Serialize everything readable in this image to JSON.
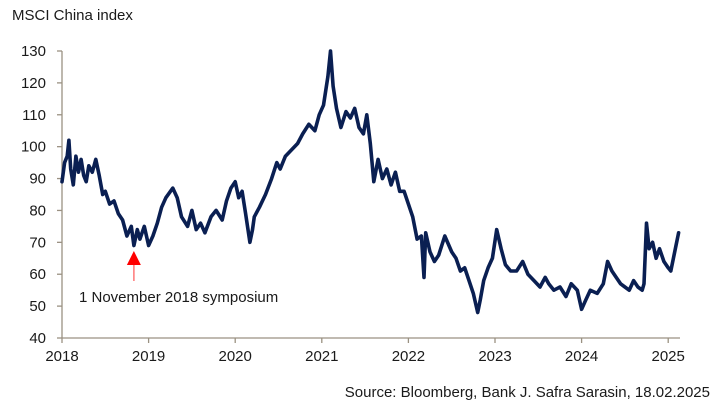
{
  "chart_data": {
    "type": "line",
    "title": "MSCI China index",
    "xlabel": "",
    "ylabel": "",
    "source": "Source:  Bloomberg, Bank J. Safra Sarasin, 18.02.2025",
    "xlim": [
      2018,
      2025.2
    ],
    "ylim": [
      40,
      130
    ],
    "x_ticks": [
      "2018",
      "2019",
      "2020",
      "2021",
      "2022",
      "2023",
      "2024",
      "2025"
    ],
    "y_ticks": [
      "40",
      "50",
      "60",
      "70",
      "80",
      "90",
      "100",
      "110",
      "120",
      "130"
    ],
    "grid": false,
    "legend": "none",
    "annotation": {
      "text": "1 November 2018 symposium",
      "x": 2018.83,
      "arrow_color": "#ff0000"
    },
    "series": [
      {
        "name": "MSCI China index",
        "color": "#0a1f52",
        "x": [
          2018.0,
          2018.03,
          2018.06,
          2018.08,
          2018.1,
          2018.13,
          2018.16,
          2018.19,
          2018.22,
          2018.25,
          2018.28,
          2018.31,
          2018.35,
          2018.39,
          2018.43,
          2018.47,
          2018.5,
          2018.55,
          2018.6,
          2018.65,
          2018.7,
          2018.75,
          2018.8,
          2018.83,
          2018.87,
          2018.9,
          2018.95,
          2019.0,
          2019.05,
          2019.1,
          2019.15,
          2019.2,
          2019.28,
          2019.33,
          2019.38,
          2019.45,
          2019.5,
          2019.55,
          2019.6,
          2019.65,
          2019.72,
          2019.78,
          2019.85,
          2019.9,
          2019.95,
          2020.0,
          2020.04,
          2020.08,
          2020.12,
          2020.17,
          2020.2,
          2020.22,
          2020.28,
          2020.35,
          2020.42,
          2020.48,
          2020.52,
          2020.58,
          2020.65,
          2020.72,
          2020.78,
          2020.85,
          2020.92,
          2020.97,
          2021.02,
          2021.07,
          2021.1,
          2021.13,
          2021.17,
          2021.22,
          2021.28,
          2021.33,
          2021.38,
          2021.43,
          2021.48,
          2021.52,
          2021.56,
          2021.6,
          2021.65,
          2021.7,
          2021.75,
          2021.8,
          2021.85,
          2021.9,
          2021.95,
          2022.0,
          2022.05,
          2022.1,
          2022.15,
          2022.18,
          2022.2,
          2022.25,
          2022.3,
          2022.35,
          2022.42,
          2022.5,
          2022.55,
          2022.6,
          2022.65,
          2022.7,
          2022.75,
          2022.8,
          2022.83,
          2022.87,
          2022.92,
          2022.97,
          2023.02,
          2023.07,
          2023.12,
          2023.18,
          2023.25,
          2023.32,
          2023.38,
          2023.45,
          2023.52,
          2023.58,
          2023.62,
          2023.68,
          2023.75,
          2023.82,
          2023.88,
          2023.95,
          2024.0,
          2024.05,
          2024.1,
          2024.18,
          2024.25,
          2024.3,
          2024.35,
          2024.4,
          2024.45,
          2024.5,
          2024.55,
          2024.6,
          2024.65,
          2024.7,
          2024.72,
          2024.75,
          2024.78,
          2024.82,
          2024.86,
          2024.9,
          2024.95,
          2025.0,
          2025.03,
          2025.06,
          2025.09,
          2025.12
        ],
        "values": [
          89,
          95,
          97,
          102,
          93,
          88,
          97,
          92,
          96,
          91,
          89,
          94,
          92,
          96,
          91,
          85,
          86,
          82,
          83,
          79,
          77,
          72,
          75,
          69,
          74,
          71,
          75,
          69,
          72,
          76,
          81,
          84,
          87,
          84,
          78,
          75,
          80,
          74,
          76,
          73,
          78,
          80,
          77,
          83,
          87,
          89,
          84,
          86,
          79,
          70,
          74,
          78,
          81,
          85,
          90,
          95,
          93,
          97,
          99,
          101,
          104,
          107,
          105,
          110,
          113,
          122,
          130,
          119,
          112,
          106,
          111,
          109,
          112,
          106,
          104,
          110,
          101,
          89,
          96,
          90,
          93,
          88,
          92,
          86,
          86,
          82,
          78,
          71,
          72,
          59,
          73,
          67,
          64,
          66,
          72,
          67,
          65,
          61,
          62,
          58,
          54,
          48,
          52,
          58,
          62,
          65,
          74,
          68,
          63,
          61,
          61,
          64,
          60,
          58,
          56,
          59,
          57,
          55,
          56,
          53,
          57,
          55,
          49,
          52,
          55,
          54,
          57,
          64,
          61,
          59,
          57,
          56,
          55,
          58,
          56,
          55,
          57,
          76,
          68,
          70,
          65,
          68,
          64,
          62,
          61,
          65,
          69,
          73
        ]
      }
    ]
  }
}
